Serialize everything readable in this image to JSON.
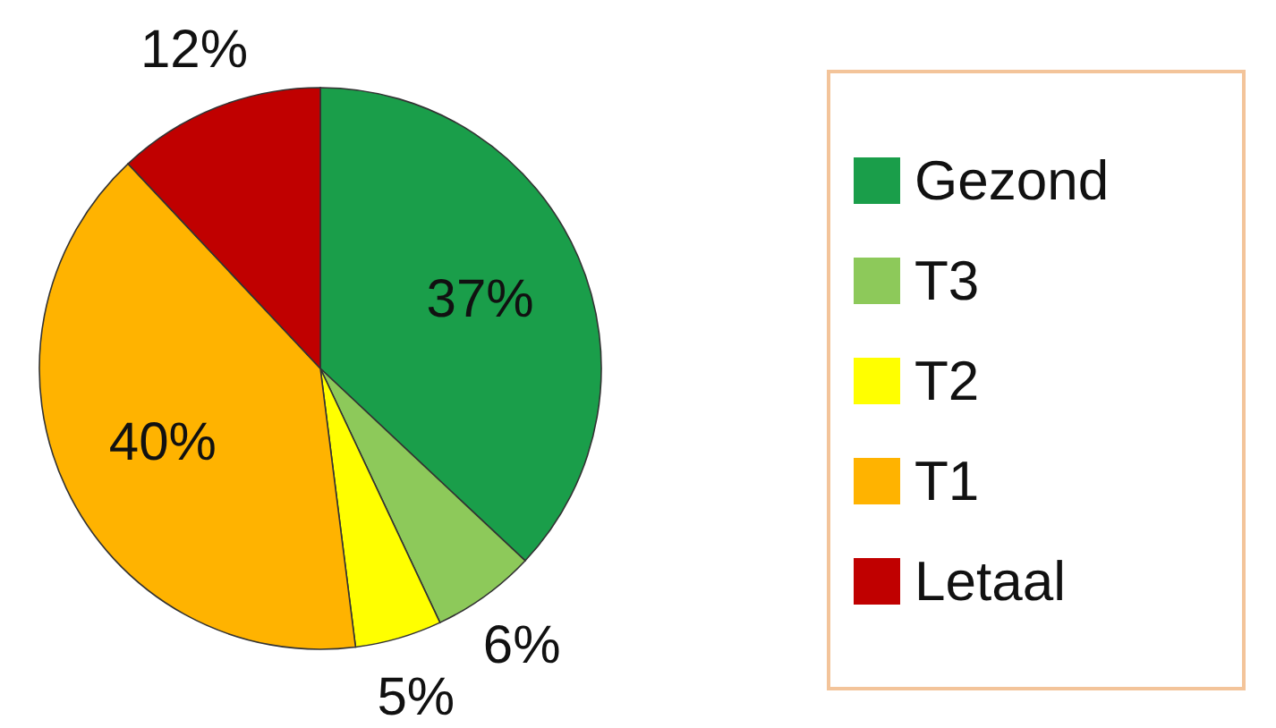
{
  "chart_data": {
    "type": "pie",
    "categories": [
      "Gezond",
      "T3",
      "T2",
      "T1",
      "Letaal"
    ],
    "values": [
      37,
      6,
      5,
      40,
      12
    ],
    "colors": [
      "#1a9e4a",
      "#8dc95a",
      "#ffff00",
      "#ffb300",
      "#c00000"
    ],
    "value_labels": [
      "37%",
      "6%",
      "5%",
      "40%",
      "12%"
    ],
    "legend": "right"
  }
}
